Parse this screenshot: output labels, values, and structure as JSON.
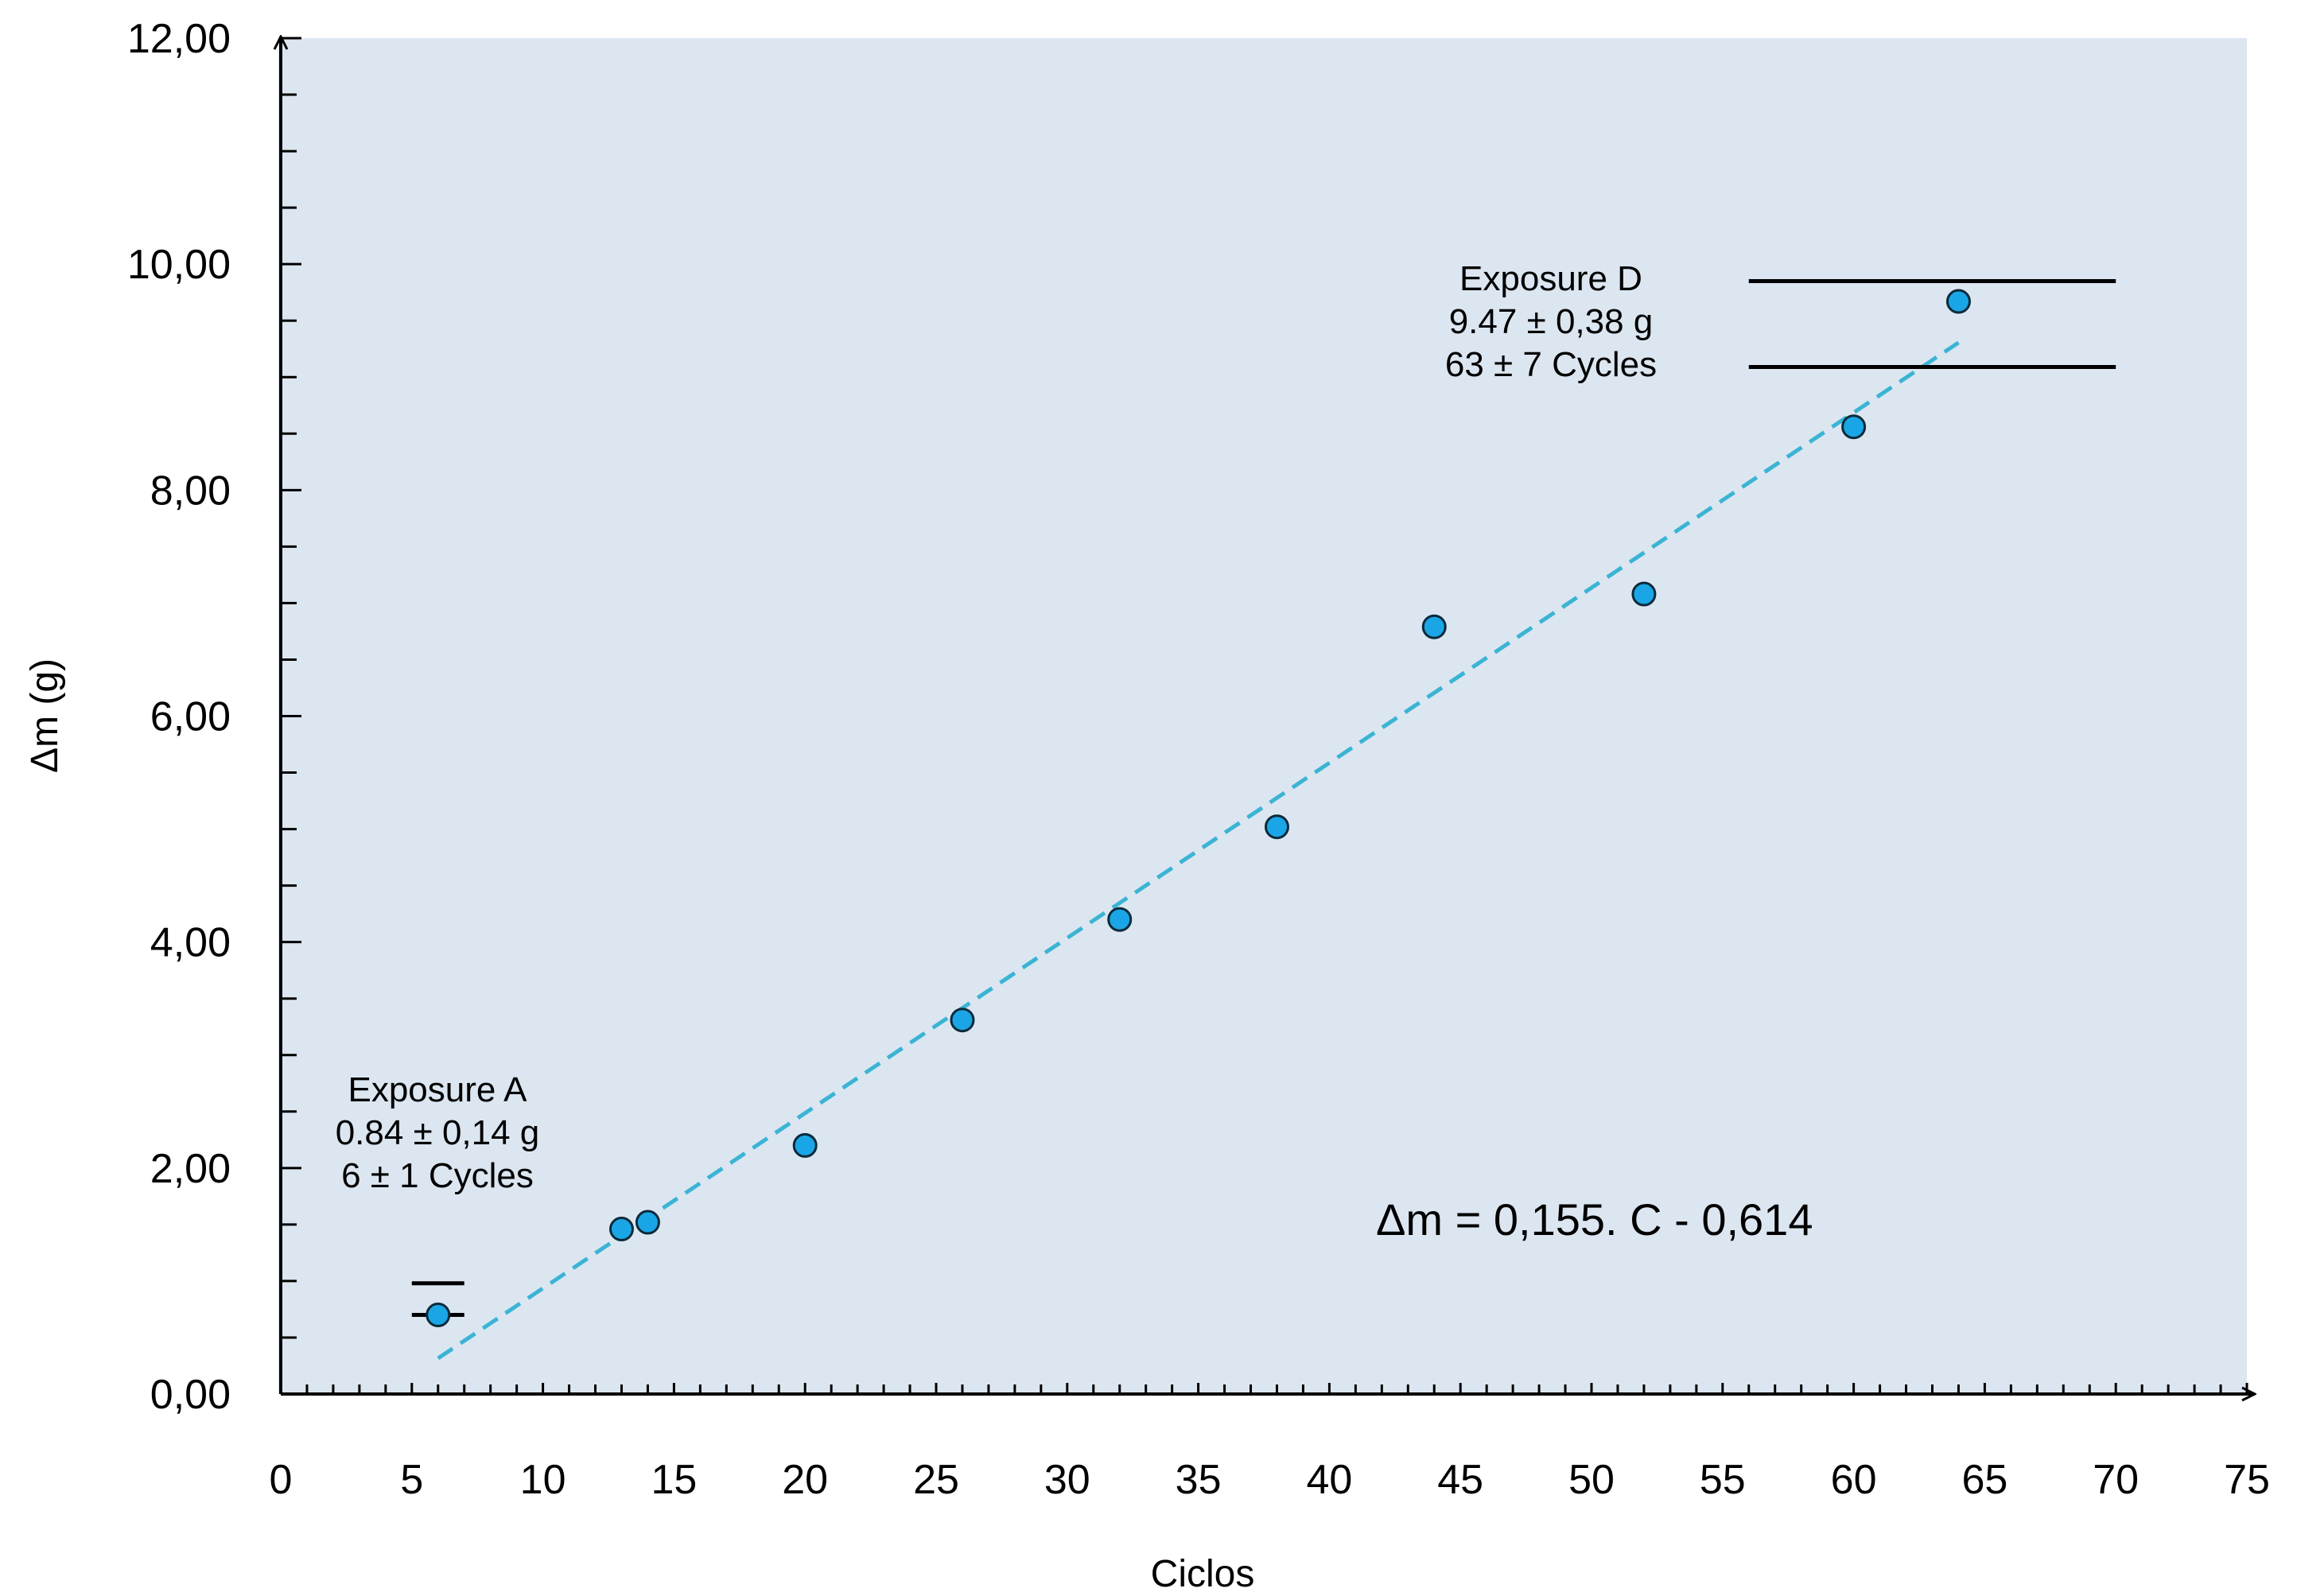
{
  "colors": {
    "plot_background": "#dce6f1",
    "marker_fill": "#1aa6e6",
    "marker_stroke": "#0b2a3a",
    "trendline": "#3bb4d4",
    "axis": "#000000"
  },
  "chart_data": {
    "type": "scatter",
    "title": "",
    "xlabel": "Ciclos",
    "ylabel": "Δm (g)",
    "xlim": [
      0,
      75
    ],
    "ylim": [
      0,
      12
    ],
    "x_ticks": [
      "0",
      "5",
      "10",
      "15",
      "20",
      "25",
      "30",
      "35",
      "40",
      "45",
      "50",
      "55",
      "60",
      "65",
      "70",
      "75"
    ],
    "y_ticks": [
      "0,00",
      "2,00",
      "4,00",
      "6,00",
      "8,00",
      "10,00",
      "12,00"
    ],
    "grid": false,
    "series": [
      {
        "x": [
          6,
          13,
          14,
          20,
          26,
          32,
          38,
          44,
          52,
          60,
          64
        ],
        "y": [
          0.7,
          1.46,
          1.52,
          2.2,
          3.31,
          4.2,
          5.02,
          6.79,
          7.08,
          8.56,
          9.67
        ]
      }
    ],
    "trendline": {
      "style": "dashed",
      "slope": 0.155,
      "intercept": -0.614,
      "x_range": [
        6,
        64
      ],
      "equation": "Δm = 0,155. C - 0,614"
    },
    "annotations": [
      {
        "name": "exposure-a",
        "lines": [
          "Exposure A",
          "0.84 ± 0,14 g",
          "6 ± 1 Cycles"
        ],
        "band": {
          "x": [
            5,
            7
          ],
          "y": [
            0.7,
            0.98
          ]
        }
      },
      {
        "name": "exposure-d",
        "lines": [
          "Exposure D",
          "9.47 ± 0,38 g",
          "63 ± 7 Cycles"
        ],
        "band": {
          "x": [
            56,
            70
          ],
          "y": [
            9.09,
            9.85
          ]
        }
      }
    ]
  }
}
